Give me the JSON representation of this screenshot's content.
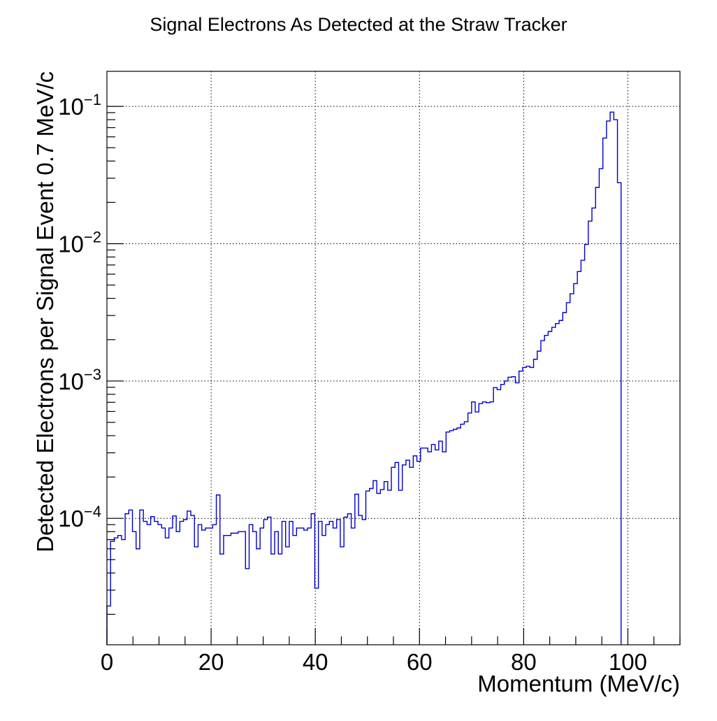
{
  "chart_data": {
    "type": "histogram",
    "title": "Signal Electrons As Detected at the Straw Tracker",
    "xlabel": "Momentum (MeV/c)",
    "ylabel": "Detected Electrons per Signal Event 0.7 MeV/c",
    "xlim": [
      0,
      110
    ],
    "ylim": [
      1.2e-05,
      0.18
    ],
    "y_scale": "log",
    "grid": true,
    "x_ticks": [
      {
        "value": 0,
        "label": "0"
      },
      {
        "value": 20,
        "label": "20"
      },
      {
        "value": 40,
        "label": "40"
      },
      {
        "value": 60,
        "label": "60"
      },
      {
        "value": 80,
        "label": "80"
      },
      {
        "value": 100,
        "label": "100"
      }
    ],
    "y_ticks": [
      {
        "value": 0.0001,
        "base": "10",
        "exp": "−4"
      },
      {
        "value": 0.001,
        "base": "10",
        "exp": "−3"
      },
      {
        "value": 0.01,
        "base": "10",
        "exp": "−2"
      },
      {
        "value": 0.1,
        "base": "10",
        "exp": "−1"
      }
    ],
    "series": [
      {
        "color": "#0000cc",
        "bin_width": 0.7,
        "x_start": 0,
        "values": [
          2.3e-05,
          6.8e-05,
          7.2e-05,
          7.5e-05,
          7e-05,
          0.000108,
          0.000115,
          8e-05,
          6e-05,
          0.000115,
          9.5e-05,
          9e-05,
          0.000103,
          9.5e-05,
          9e-05,
          8.5e-05,
          7.2e-05,
          8.5e-05,
          0.000104,
          8e-05,
          9.5e-05,
          9.8e-05,
          0.000113,
          0.000105,
          6.2e-05,
          9e-05,
          8.2e-05,
          8.5e-05,
          8.5e-05,
          9e-05,
          0.000148,
          5.5e-05,
          7.5e-05,
          7.5e-05,
          7.8e-05,
          7.8e-05,
          8e-05,
          8e-05,
          4.3e-05,
          9e-05,
          8e-05,
          6e-05,
          8.5e-05,
          9.8e-05,
          0.000102,
          5.5e-05,
          8e-05,
          5.5e-05,
          9.5e-05,
          6.2e-05,
          9.5e-05,
          7.5e-05,
          8.5e-05,
          8.5e-05,
          8.2e-05,
          8.5e-05,
          0.000108,
          3.1e-05,
          9.5e-05,
          7.5e-05,
          9e-05,
          9.5e-05,
          8.5e-05,
          9.8e-05,
          6.2e-05,
          0.000102,
          0.000108,
          8.5e-05,
          0.00015,
          0.000105,
          9.8e-05,
          0.000158,
          0.000165,
          0.000188,
          0.000152,
          0.000162,
          0.000185,
          0.00016,
          0.000235,
          0.000255,
          0.00016,
          0.000245,
          0.000265,
          0.000235,
          0.000285,
          0.00026,
          0.000325,
          0.000325,
          0.000305,
          0.000345,
          0.000315,
          0.000365,
          0.000305,
          0.000425,
          0.000435,
          0.000445,
          0.000455,
          0.000485,
          0.000505,
          0.000585,
          0.000705,
          0.000595,
          0.000685,
          0.000705,
          0.000695,
          0.000705,
          0.000895,
          0.000865,
          0.000945,
          0.001,
          0.001065,
          0.001075,
          0.00097,
          0.00118,
          0.001255,
          0.00128,
          0.001255,
          0.00144,
          0.00165,
          0.00197,
          0.00215,
          0.002295,
          0.00246,
          0.00262,
          0.00276,
          0.00315,
          0.00372,
          0.00432,
          0.00512,
          0.00627,
          0.00757,
          0.00987,
          0.0146,
          0.0182,
          0.0257,
          0.0352,
          0.0588,
          0.0782,
          0.0908,
          0.08,
          0.0278
        ]
      }
    ]
  }
}
